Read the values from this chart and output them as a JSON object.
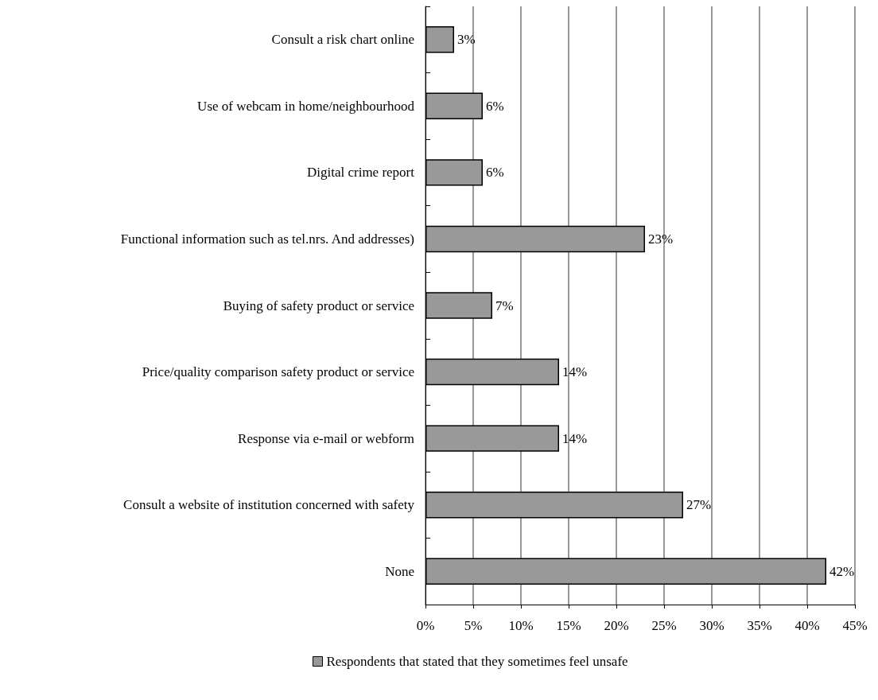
{
  "chart_data": {
    "type": "bar",
    "orientation": "horizontal",
    "categories": [
      "Consult a risk chart online",
      "Use of webcam in home/neighbourhood",
      "Digital crime report",
      "Functional information such as tel.nrs. And addresses)",
      "Buying of safety product or service",
      "Price/quality comparison safety product or service",
      "Response via e-mail or webform",
      "Consult a website of institution concerned with safety",
      "None"
    ],
    "series": [
      {
        "name": "Respondents that stated that they sometimes feel unsafe",
        "color": "#999999",
        "values": [
          3,
          6,
          6,
          23,
          7,
          14,
          14,
          27,
          42
        ],
        "value_labels": [
          "3%",
          "6%",
          "6%",
          "23%",
          "7%",
          "14%",
          "14%",
          "27%",
          "42%"
        ]
      }
    ],
    "xlim": [
      0,
      45
    ],
    "xticks": [
      {
        "value": 0,
        "label": "0%"
      },
      {
        "value": 5,
        "label": "5%"
      },
      {
        "value": 10,
        "label": "10%"
      },
      {
        "value": 15,
        "label": "15%"
      },
      {
        "value": 20,
        "label": "20%"
      },
      {
        "value": 25,
        "label": "25%"
      },
      {
        "value": 30,
        "label": "30%"
      },
      {
        "value": 35,
        "label": "35%"
      },
      {
        "value": 40,
        "label": "40%"
      },
      {
        "value": 45,
        "label": "45%"
      }
    ],
    "grid": "x",
    "legend": "bottom"
  }
}
